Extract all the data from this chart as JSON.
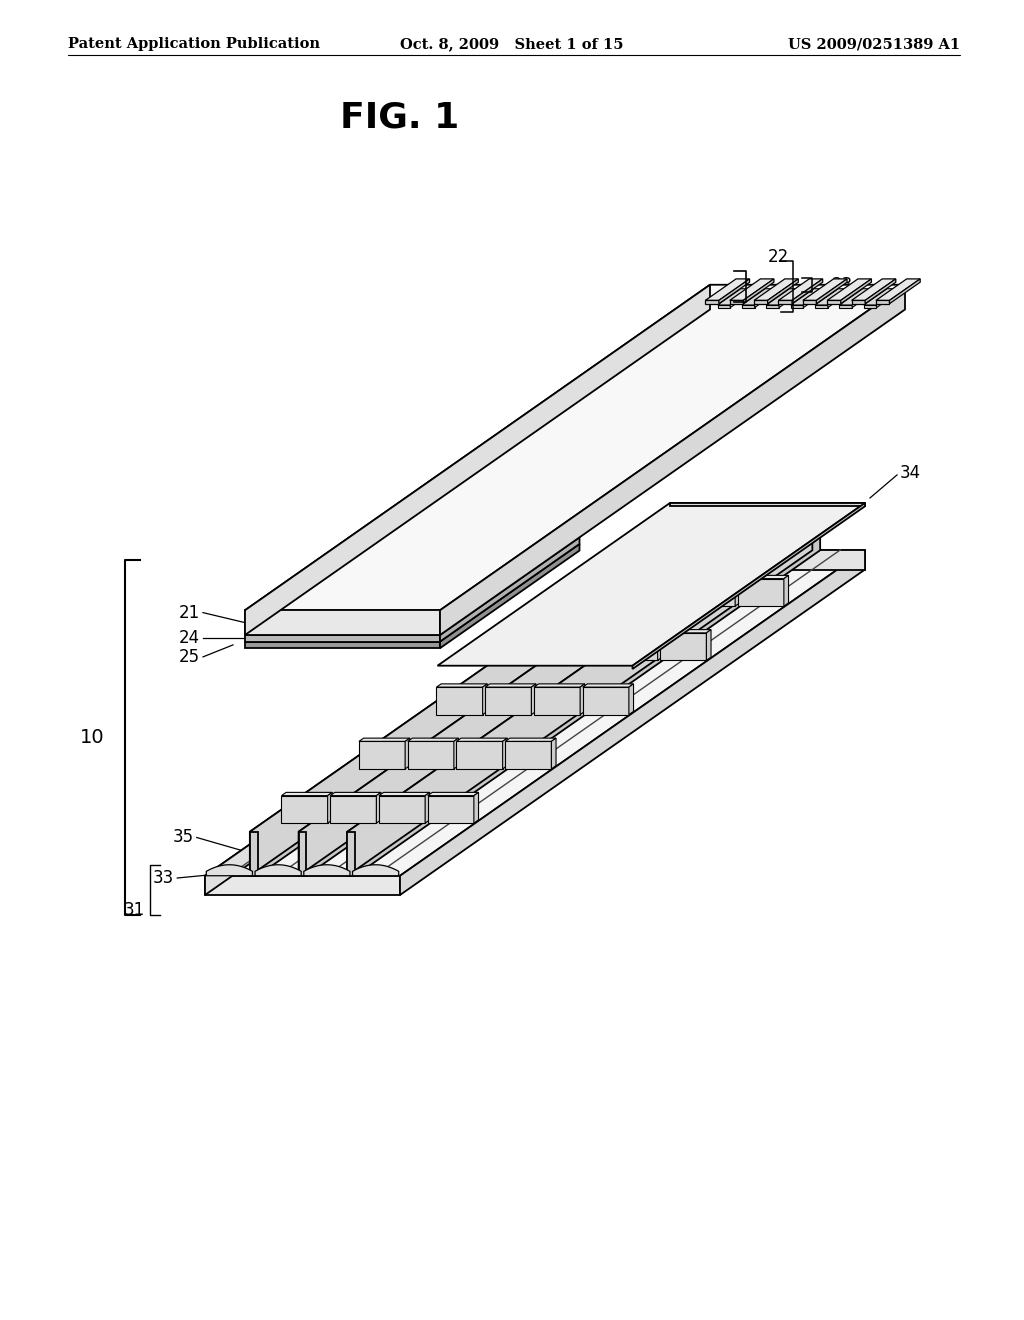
{
  "title": "FIG. 1",
  "header_left": "Patent Application Publication",
  "header_center": "Oct. 8, 2009   Sheet 1 of 15",
  "header_right": "US 2009/0251389 A1",
  "bg_color": "#ffffff",
  "line_color": "#000000",
  "label_fontsize": 12,
  "header_fontsize": 10.5,
  "title_fontsize": 26,
  "lw": 1.3
}
